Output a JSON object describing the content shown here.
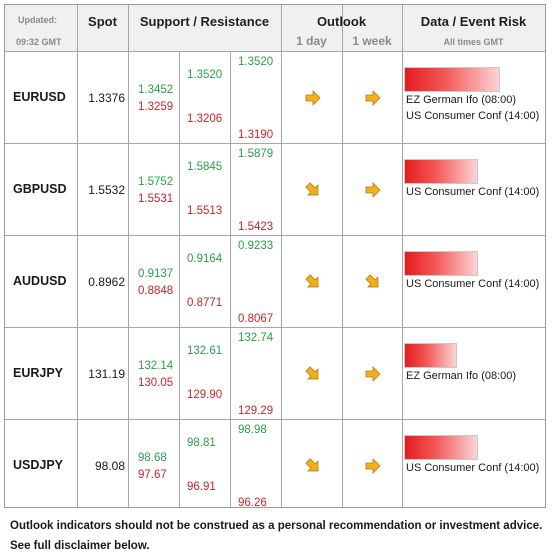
{
  "header": {
    "updated_label": "Updated:",
    "updated_time": "09:32 GMT",
    "spot": "Spot",
    "support_resistance": "Support / Resistance",
    "outlook": "Outlook",
    "outlook_1day": "1 day",
    "outlook_1week": "1 week",
    "event_risk": "Data / Event Risk",
    "times_note": "All times GMT"
  },
  "rows": [
    {
      "pair": "EURUSD",
      "spot": "1.3376",
      "s1r": "1.3452",
      "s1s": "1.3259",
      "s2r": "1.3520",
      "s2s": "1.3206",
      "s3r": "1.3520",
      "s3s": "1.3190",
      "day": "right",
      "week": "right",
      "risk": 0.67,
      "events": [
        "EZ German Ifo (08:00)",
        "US Consumer Conf (14:00)"
      ]
    },
    {
      "pair": "GBPUSD",
      "spot": "1.5532",
      "s1r": "1.5752",
      "s1s": "1.5531",
      "s2r": "1.5845",
      "s2s": "1.5513",
      "s3r": "1.5879",
      "s3s": "1.5423",
      "day": "down-right",
      "week": "right",
      "risk": 0.52,
      "events": [
        "US Consumer Conf (14:00)"
      ]
    },
    {
      "pair": "AUDUSD",
      "spot": "0.8962",
      "s1r": "0.9137",
      "s1s": "0.8848",
      "s2r": "0.9164",
      "s2s": "0.8771",
      "s3r": "0.9233",
      "s3s": "0.8067",
      "day": "down-right",
      "week": "down-right",
      "risk": 0.52,
      "events": [
        "US Consumer Conf (14:00)"
      ]
    },
    {
      "pair": "EURJPY",
      "spot": "131.19",
      "s1r": "132.14",
      "s1s": "130.05",
      "s2r": "132.61",
      "s2s": "129.90",
      "s3r": "132.74",
      "s3s": "129.29",
      "day": "down-right",
      "week": "right",
      "risk": 0.37,
      "events": [
        "EZ German Ifo (08:00)"
      ]
    },
    {
      "pair": "USDJPY",
      "spot": "98.08",
      "s1r": "98.68",
      "s1s": "97.67",
      "s2r": "98.81",
      "s2s": "96.91",
      "s3r": "98.98",
      "s3s": "96.26",
      "day": "down-right",
      "week": "right",
      "risk": 0.52,
      "events": [
        "US Consumer Conf (14:00)"
      ]
    }
  ],
  "footer": {
    "line1": "Outlook indicators should not be construed as a personal recommendation or investment advice.",
    "line2": "See full disclaimer below."
  },
  "colors": {
    "support": "#2aa04a",
    "resistance": "#c8262c",
    "arrow": "#f2b01e",
    "risk_bar": "#e51c1c"
  }
}
